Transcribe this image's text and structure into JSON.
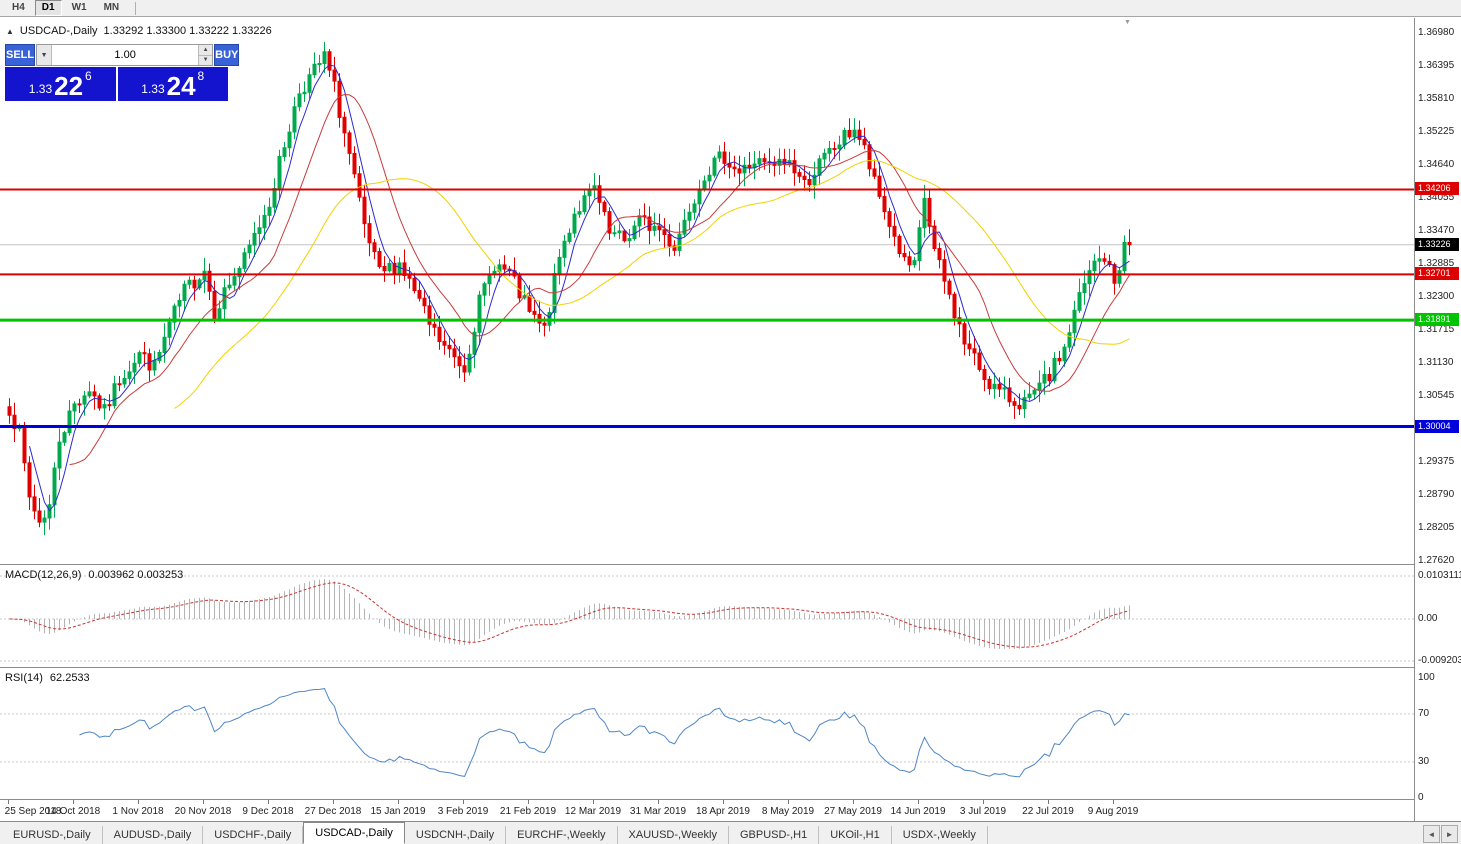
{
  "toolbar": {
    "timeframes": [
      {
        "label": "H4",
        "active": false
      },
      {
        "label": "D1",
        "active": true
      },
      {
        "label": "W1",
        "active": false
      },
      {
        "label": "MN",
        "active": false
      }
    ]
  },
  "chart": {
    "header": {
      "title": "USDCAD-,Daily",
      "ohlc": "1.33292 1.33300 1.33222 1.33226"
    }
  },
  "trade": {
    "sell_label": "SELL",
    "buy_label": "BUY",
    "volume": "1.00",
    "sell_price": {
      "prefix": "1.33",
      "big": "22",
      "sup": "6",
      "full": "1.33226"
    },
    "buy_price": {
      "prefix": "1.33",
      "big": "24",
      "sup": "8",
      "full": "1.33248"
    }
  },
  "chart_data": {
    "type": "candlestick",
    "symbol": "USDCAD-",
    "timeframe": "Daily",
    "ohlc_current": {
      "open": "1.33292",
      "high": "1.33300",
      "low": "1.33222",
      "close": "1.33226"
    },
    "num_candles": 225,
    "anchors": [
      [
        0,
        1.3035
      ],
      [
        2,
        1.2985
      ],
      [
        4,
        1.2875
      ],
      [
        6,
        1.2832
      ],
      [
        8,
        1.286
      ],
      [
        10,
        1.298
      ],
      [
        13,
        1.304
      ],
      [
        16,
        1.3068
      ],
      [
        19,
        1.3025
      ],
      [
        22,
        1.3085
      ],
      [
        26,
        1.313
      ],
      [
        29,
        1.3105
      ],
      [
        32,
        1.318
      ],
      [
        35,
        1.324
      ],
      [
        39,
        1.328
      ],
      [
        41,
        1.3205
      ],
      [
        44,
        1.3255
      ],
      [
        47,
        1.3295
      ],
      [
        52,
        1.34
      ],
      [
        55,
        1.35
      ],
      [
        58,
        1.3595
      ],
      [
        61,
        1.363
      ],
      [
        63,
        1.3655
      ],
      [
        65,
        1.36
      ],
      [
        68,
        1.348
      ],
      [
        71,
        1.335
      ],
      [
        74,
        1.327
      ],
      [
        78,
        1.329
      ],
      [
        81,
        1.324
      ],
      [
        84,
        1.318
      ],
      [
        87,
        1.314
      ],
      [
        91,
        1.3105
      ],
      [
        94,
        1.322
      ],
      [
        97,
        1.329
      ],
      [
        100,
        1.327
      ],
      [
        104,
        1.32
      ],
      [
        107,
        1.317
      ],
      [
        110,
        1.33
      ],
      [
        113,
        1.338
      ],
      [
        117,
        1.342
      ],
      [
        120,
        1.334
      ],
      [
        123,
        1.333
      ],
      [
        126,
        1.3365
      ],
      [
        130,
        1.335
      ],
      [
        133,
        1.332
      ],
      [
        136,
        1.339
      ],
      [
        139,
        1.345
      ],
      [
        143,
        1.348
      ],
      [
        146,
        1.345
      ],
      [
        149,
        1.347
      ],
      [
        152,
        1.346
      ],
      [
        156,
        1.347
      ],
      [
        159,
        1.343
      ],
      [
        162,
        1.3465
      ],
      [
        165,
        1.3495
      ],
      [
        169,
        1.353
      ],
      [
        171,
        1.349
      ],
      [
        173,
        1.343
      ],
      [
        176,
        1.336
      ],
      [
        179,
        1.329
      ],
      [
        181,
        1.328
      ],
      [
        183,
        1.3405
      ],
      [
        185,
        1.331
      ],
      [
        188,
        1.323
      ],
      [
        191,
        1.315
      ],
      [
        195,
        1.309
      ],
      [
        198,
        1.306
      ],
      [
        201,
        1.3045
      ],
      [
        204,
        1.3045
      ],
      [
        208,
        1.309
      ],
      [
        211,
        1.314
      ],
      [
        214,
        1.323
      ],
      [
        217,
        1.329
      ],
      [
        219,
        1.33
      ],
      [
        221,
        1.3255
      ],
      [
        223,
        1.332
      ],
      [
        224,
        1.33226
      ]
    ],
    "last_close": 1.33226,
    "price_axis": {
      "ticks": [
        "1.36980",
        "1.36395",
        "1.35810",
        "1.35225",
        "1.34640",
        "1.34055",
        "1.33470",
        "1.32885",
        "1.32300",
        "1.31715",
        "1.31130",
        "1.30545",
        "1.29960",
        "1.29375",
        "1.28790",
        "1.28205",
        "1.27620"
      ],
      "tick_step": 0.00585
    },
    "x_labels": [
      "25 Sep 2018",
      "14 Oct 2018",
      "1 Nov 2018",
      "20 Nov 2018",
      "9 Dec 2018",
      "27 Dec 2018",
      "15 Jan 2019",
      "3 Feb 2019",
      "21 Feb 2019",
      "12 Mar 2019",
      "31 Mar 2019",
      "18 Apr 2019",
      "8 May 2019",
      "27 May 2019",
      "14 Jun 2019",
      "3 Jul 2019",
      "22 Jul 2019",
      "9 Aug 2019"
    ],
    "candles_per_label": 13,
    "h_lines": [
      {
        "price": 1.34206,
        "label": "1.34206",
        "color": "#dd0000",
        "width": 2
      },
      {
        "price": 1.32701,
        "label": "1.32701",
        "color": "#dd0000",
        "width": 2
      },
      {
        "price": 1.31891,
        "label": "1.31891",
        "color": "#00c400",
        "width": 3
      },
      {
        "price": 1.30004,
        "label": "1.30004",
        "color": "#0000dd",
        "width": 3
      }
    ],
    "bid": {
      "price": 1.33226,
      "label": "1.33226",
      "tag_color": "#000000"
    },
    "ma": [
      {
        "period": 5,
        "color": "#2a2ad0"
      },
      {
        "period": 13,
        "color": "#c83c3c"
      },
      {
        "period": 34,
        "color": "#f2d200"
      }
    ],
    "macd": {
      "header_label": "MACD(12,26,9)",
      "header_values": "0.003962 0.003253",
      "fast": 12,
      "slow": 26,
      "signal": 9,
      "scale_max": "0.0103111",
      "scale_mid": "0.00",
      "scale_min": "-0.0092033",
      "hist_color": "#b4b4b4",
      "signal_color": "#cc3333"
    },
    "rsi": {
      "header_label": "RSI(14)",
      "header_value": "62.2533",
      "period": 14,
      "levels": [
        "100",
        "70",
        "30",
        "0"
      ],
      "dashed_levels": [
        70,
        30
      ],
      "line_color": "#4f86c6"
    },
    "colors": {
      "candle_up": "#00a94e",
      "candle_down": "#e00000",
      "bid_line": "#c4c4c4",
      "level_dash": "#c8c8c8"
    }
  },
  "tabs": {
    "items": [
      "EURUSD-,Daily",
      "AUDUSD-,Daily",
      "USDCHF-,Daily",
      "USDCAD-,Daily",
      "USDCNH-,Daily",
      "EURCHF-,Weekly",
      "XAUUSD-,Weekly",
      "GBPUSD-,H1",
      "UKOil-,H1",
      "USDX-,Weekly"
    ],
    "active": "USDCAD-,Daily",
    "nav_left": "◄",
    "nav_right": "►"
  }
}
